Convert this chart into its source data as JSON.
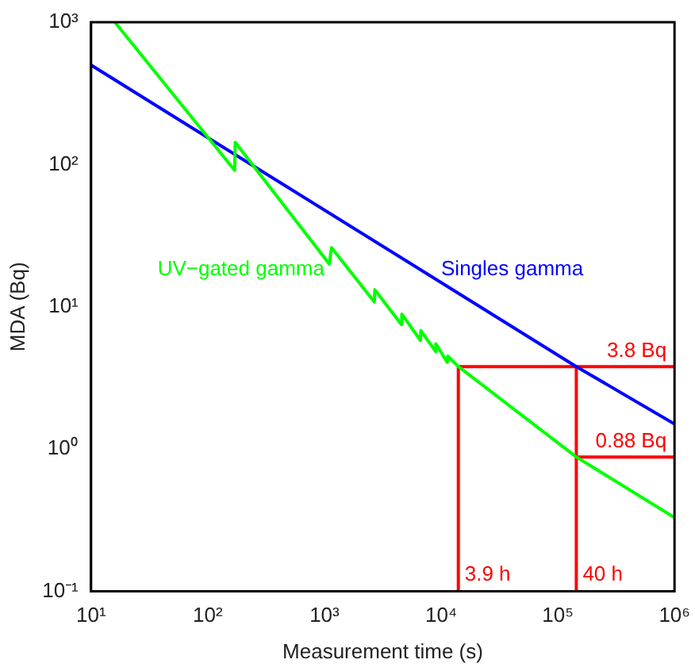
{
  "chart_data": {
    "type": "line",
    "xlabel": "Measurement time (s)",
    "ylabel": "MDA (Bq)",
    "log": "xy",
    "grid": false,
    "legend": false,
    "marker": "none",
    "line_style": "solid",
    "xlim": [
      10,
      1000000
    ],
    "ylim": [
      0.1,
      1000
    ],
    "xticks": [
      {
        "value": 10,
        "label": "10¹"
      },
      {
        "value": 100,
        "label": "10²"
      },
      {
        "value": 1000,
        "label": "10³"
      },
      {
        "value": 10000,
        "label": "10⁴"
      },
      {
        "value": 100000,
        "label": "10⁵"
      },
      {
        "value": 1000000,
        "label": "10⁶"
      }
    ],
    "yticks": [
      {
        "value": 0.1,
        "label": "10⁻¹"
      },
      {
        "value": 1,
        "label": "10⁰"
      },
      {
        "value": 10,
        "label": "10¹"
      },
      {
        "value": 100,
        "label": "10²"
      },
      {
        "value": 1000,
        "label": "10³"
      }
    ],
    "series": [
      {
        "name": "UV−gated gamma",
        "color": "#00ff00",
        "x": [
          16,
          170,
          172,
          1100,
          1150,
          2680,
          2700,
          4570,
          4600,
          6650,
          6700,
          8970,
          9000,
          11300,
          11400,
          14040,
          144000,
          1000000
        ],
        "values": [
          1000,
          91,
          143,
          20,
          26,
          10.8,
          13.2,
          7.5,
          8.9,
          5.8,
          6.8,
          4.85,
          5.5,
          4.07,
          4.5,
          3.8,
          0.88,
          0.33
        ]
      },
      {
        "name": "Singles gamma",
        "color": "#0000ff",
        "x": [
          10,
          144000,
          1000000
        ],
        "values": [
          500,
          3.8,
          1.5
        ]
      },
      {
        "color": "#ff0000",
        "x": [
          14040,
          14040,
          1000000
        ],
        "values": [
          0.1,
          3.8,
          3.8
        ]
      },
      {
        "color": "#ff0000",
        "x": [
          144000,
          144000
        ],
        "values": [
          0.1,
          3.8
        ]
      },
      {
        "color": "#ff0000",
        "x": [
          144000,
          1000000
        ],
        "values": [
          0.88,
          0.88
        ]
      }
    ],
    "annotations": [
      {
        "text": "3.8 Bq",
        "x": 1000000,
        "y": 3.8
      },
      {
        "text": "0.88 Bq",
        "x": 1000000,
        "y": 0.88
      },
      {
        "text": "3.9 h",
        "x": 14040,
        "y": 0.1
      },
      {
        "text": "40 h",
        "x": 144000,
        "y": 0.1
      }
    ]
  }
}
